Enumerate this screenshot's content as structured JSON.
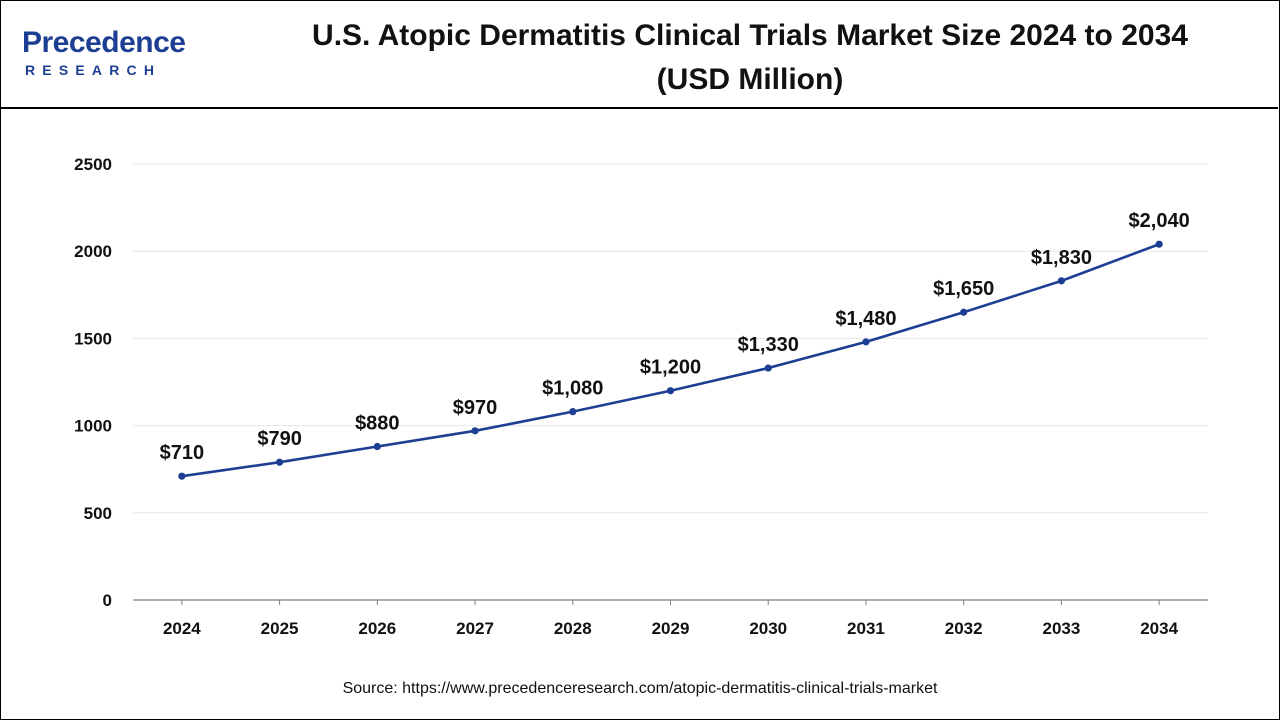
{
  "header": {
    "logo_text": "Precedence",
    "logo_subtext": "RESEARCH",
    "title_line1": "U.S. Atopic Dermatitis Clinical Trials Market Size 2024 to 2034",
    "title_line2": "(USD Million)"
  },
  "source": "Source: https://www.precedenceresearch.com/atopic-dermatitis-clinical-trials-market",
  "colors": {
    "line": "#1d3f93",
    "brand": "#1d3f93",
    "grid": "#e6e6e6",
    "axis": "#7f7f7f"
  },
  "chart_data": {
    "type": "line",
    "title": "U.S. Atopic Dermatitis Clinical Trials Market Size 2024 to 2034 (USD Million)",
    "xlabel": "",
    "ylabel": "",
    "categories": [
      "2024",
      "2025",
      "2026",
      "2027",
      "2028",
      "2029",
      "2030",
      "2031",
      "2032",
      "2033",
      "2034"
    ],
    "series": [
      {
        "values": [
          710,
          790,
          880,
          970,
          1080,
          1200,
          1330,
          1480,
          1650,
          1830,
          2040
        ],
        "labels": [
          "$710",
          "$790",
          "$880",
          "$970",
          "$1,080",
          "$1,200",
          "$1,330",
          "$1,480",
          "$1,650",
          "$1,830",
          "$2,040"
        ]
      }
    ],
    "ylim": [
      0,
      2500
    ],
    "yticks": [
      "0",
      "500",
      "1000",
      "1500",
      "2000",
      "2500"
    ],
    "grid": true,
    "legend": "none"
  }
}
